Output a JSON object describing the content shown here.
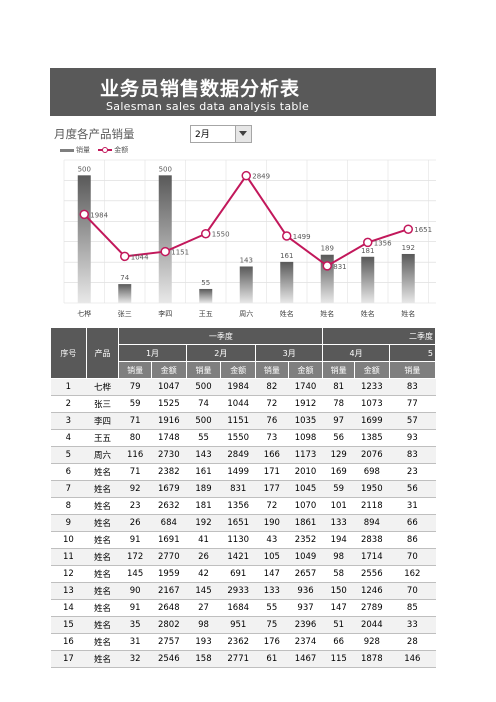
{
  "header": {
    "title_cn": "业务员销售数据分析表",
    "title_en": "Salesman sales data analysis table"
  },
  "chart_panel": {
    "title": "月度各产品销量",
    "month_select_value": "2月",
    "legend_bar": "销量",
    "legend_line": "金额"
  },
  "chart_data": {
    "type": "bar",
    "categories": [
      "七桦",
      "张三",
      "李四",
      "王五",
      "周六",
      "姓名",
      "姓名",
      "姓名",
      "姓名"
    ],
    "series": [
      {
        "name": "销量",
        "type": "bar",
        "values": [
          500,
          74,
          500,
          55,
          143,
          161,
          189,
          181,
          192
        ]
      },
      {
        "name": "金额",
        "type": "line",
        "values": [
          1984,
          1044,
          1151,
          1550,
          2849,
          1499,
          831,
          1356,
          1651
        ]
      }
    ],
    "colors": {
      "bar": "#7f7f7f",
      "line": "#c2185b"
    }
  },
  "table": {
    "group_headers": [
      "一季度",
      "二季度"
    ],
    "col_seq": "序号",
    "col_product": "产品",
    "months": [
      "1月",
      "2月",
      "3月",
      "4月",
      "5"
    ],
    "sub_qty": "销量",
    "sub_amt": "金额",
    "rows": [
      [
        "1",
        "七桦",
        "79",
        "1047",
        "500",
        "1984",
        "82",
        "1740",
        "81",
        "1233",
        "83"
      ],
      [
        "2",
        "张三",
        "59",
        "1525",
        "74",
        "1044",
        "72",
        "1912",
        "78",
        "1073",
        "77"
      ],
      [
        "3",
        "李四",
        "71",
        "1916",
        "500",
        "1151",
        "76",
        "1035",
        "97",
        "1699",
        "57"
      ],
      [
        "4",
        "王五",
        "80",
        "1748",
        "55",
        "1550",
        "73",
        "1098",
        "56",
        "1385",
        "93"
      ],
      [
        "5",
        "周六",
        "116",
        "2730",
        "143",
        "2849",
        "166",
        "1173",
        "129",
        "2076",
        "83"
      ],
      [
        "6",
        "姓名",
        "71",
        "2382",
        "161",
        "1499",
        "171",
        "2010",
        "169",
        "698",
        "23"
      ],
      [
        "7",
        "姓名",
        "92",
        "1679",
        "189",
        "831",
        "177",
        "1045",
        "59",
        "1950",
        "56"
      ],
      [
        "8",
        "姓名",
        "23",
        "2632",
        "181",
        "1356",
        "72",
        "1070",
        "101",
        "2118",
        "31"
      ],
      [
        "9",
        "姓名",
        "26",
        "684",
        "192",
        "1651",
        "190",
        "1861",
        "133",
        "894",
        "66"
      ],
      [
        "10",
        "姓名",
        "91",
        "1691",
        "41",
        "1130",
        "43",
        "2352",
        "194",
        "2838",
        "86"
      ],
      [
        "11",
        "姓名",
        "172",
        "2770",
        "26",
        "1421",
        "105",
        "1049",
        "98",
        "1714",
        "70"
      ],
      [
        "12",
        "姓名",
        "145",
        "1959",
        "42",
        "691",
        "147",
        "2657",
        "58",
        "2556",
        "162"
      ],
      [
        "13",
        "姓名",
        "90",
        "2167",
        "145",
        "2933",
        "133",
        "936",
        "150",
        "1246",
        "70"
      ],
      [
        "14",
        "姓名",
        "91",
        "2648",
        "27",
        "1684",
        "55",
        "937",
        "147",
        "2789",
        "85"
      ],
      [
        "15",
        "姓名",
        "35",
        "2802",
        "98",
        "951",
        "75",
        "2396",
        "51",
        "2044",
        "33"
      ],
      [
        "16",
        "姓名",
        "31",
        "2757",
        "193",
        "2362",
        "176",
        "2374",
        "66",
        "928",
        "28"
      ],
      [
        "17",
        "姓名",
        "32",
        "2546",
        "158",
        "2771",
        "61",
        "1467",
        "115",
        "1878",
        "146"
      ]
    ]
  }
}
